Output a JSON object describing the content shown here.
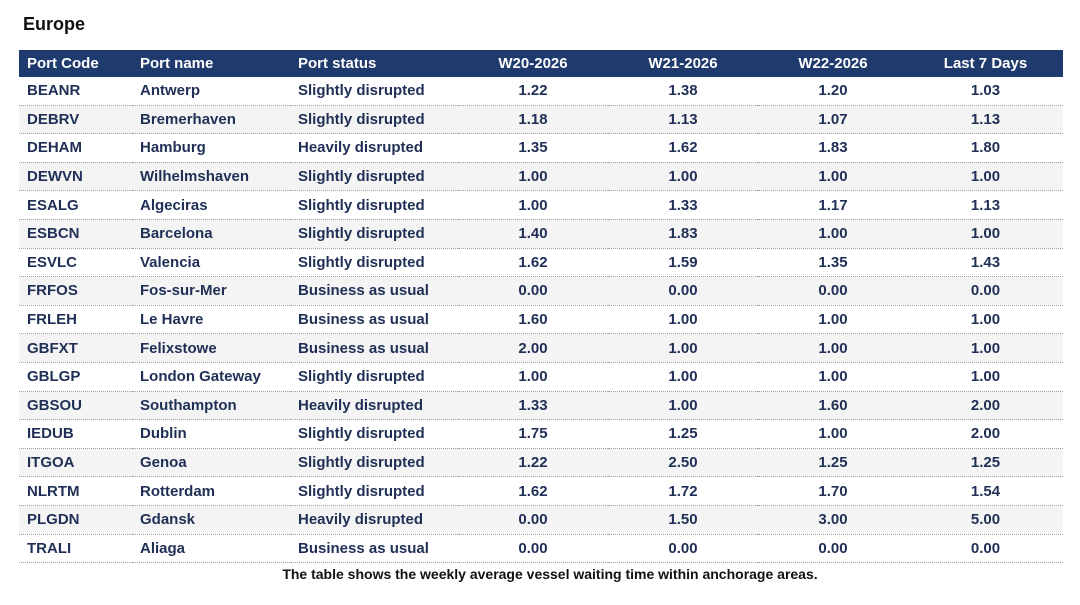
{
  "title": "Europe",
  "columns": [
    "Port Code",
    "Port name",
    "Port status",
    "W20-2026",
    "W21-2026",
    "W22-2026",
    "Last 7 Days"
  ],
  "rows": [
    [
      "BEANR",
      "Antwerp",
      "Slightly disrupted",
      "1.22",
      "1.38",
      "1.20",
      "1.03"
    ],
    [
      "DEBRV",
      "Bremerhaven",
      "Slightly disrupted",
      "1.18",
      "1.13",
      "1.07",
      "1.13"
    ],
    [
      "DEHAM",
      "Hamburg",
      "Heavily disrupted",
      "1.35",
      "1.62",
      "1.83",
      "1.80"
    ],
    [
      "DEWVN",
      "Wilhelmshaven",
      "Slightly disrupted",
      "1.00",
      "1.00",
      "1.00",
      "1.00"
    ],
    [
      "ESALG",
      "Algeciras",
      "Slightly disrupted",
      "1.00",
      "1.33",
      "1.17",
      "1.13"
    ],
    [
      "ESBCN",
      "Barcelona",
      "Slightly disrupted",
      "1.40",
      "1.83",
      "1.00",
      "1.00"
    ],
    [
      "ESVLC",
      "Valencia",
      "Slightly disrupted",
      "1.62",
      "1.59",
      "1.35",
      "1.43"
    ],
    [
      "FRFOS",
      "Fos-sur-Mer",
      "Business as usual",
      "0.00",
      "0.00",
      "0.00",
      "0.00"
    ],
    [
      "FRLEH",
      "Le Havre",
      "Business as usual",
      "1.60",
      "1.00",
      "1.00",
      "1.00"
    ],
    [
      "GBFXT",
      "Felixstowe",
      "Business as usual",
      "2.00",
      "1.00",
      "1.00",
      "1.00"
    ],
    [
      "GBLGP",
      "London Gateway",
      "Slightly disrupted",
      "1.00",
      "1.00",
      "1.00",
      "1.00"
    ],
    [
      "GBSOU",
      "Southampton",
      "Heavily disrupted",
      "1.33",
      "1.00",
      "1.60",
      "2.00"
    ],
    [
      "IEDUB",
      "Dublin",
      "Slightly disrupted",
      "1.75",
      "1.25",
      "1.00",
      "2.00"
    ],
    [
      "ITGOA",
      "Genoa",
      "Slightly disrupted",
      "1.22",
      "2.50",
      "1.25",
      "1.25"
    ],
    [
      "NLRTM",
      "Rotterdam",
      "Slightly disrupted",
      "1.62",
      "1.72",
      "1.70",
      "1.54"
    ],
    [
      "PLGDN",
      "Gdansk",
      "Heavily disrupted",
      "0.00",
      "1.50",
      "3.00",
      "5.00"
    ],
    [
      "TRALI",
      "Aliaga",
      "Business as usual",
      "0.00",
      "0.00",
      "0.00",
      "0.00"
    ]
  ],
  "note": "The table shows the weekly average vessel waiting time within anchorage areas."
}
